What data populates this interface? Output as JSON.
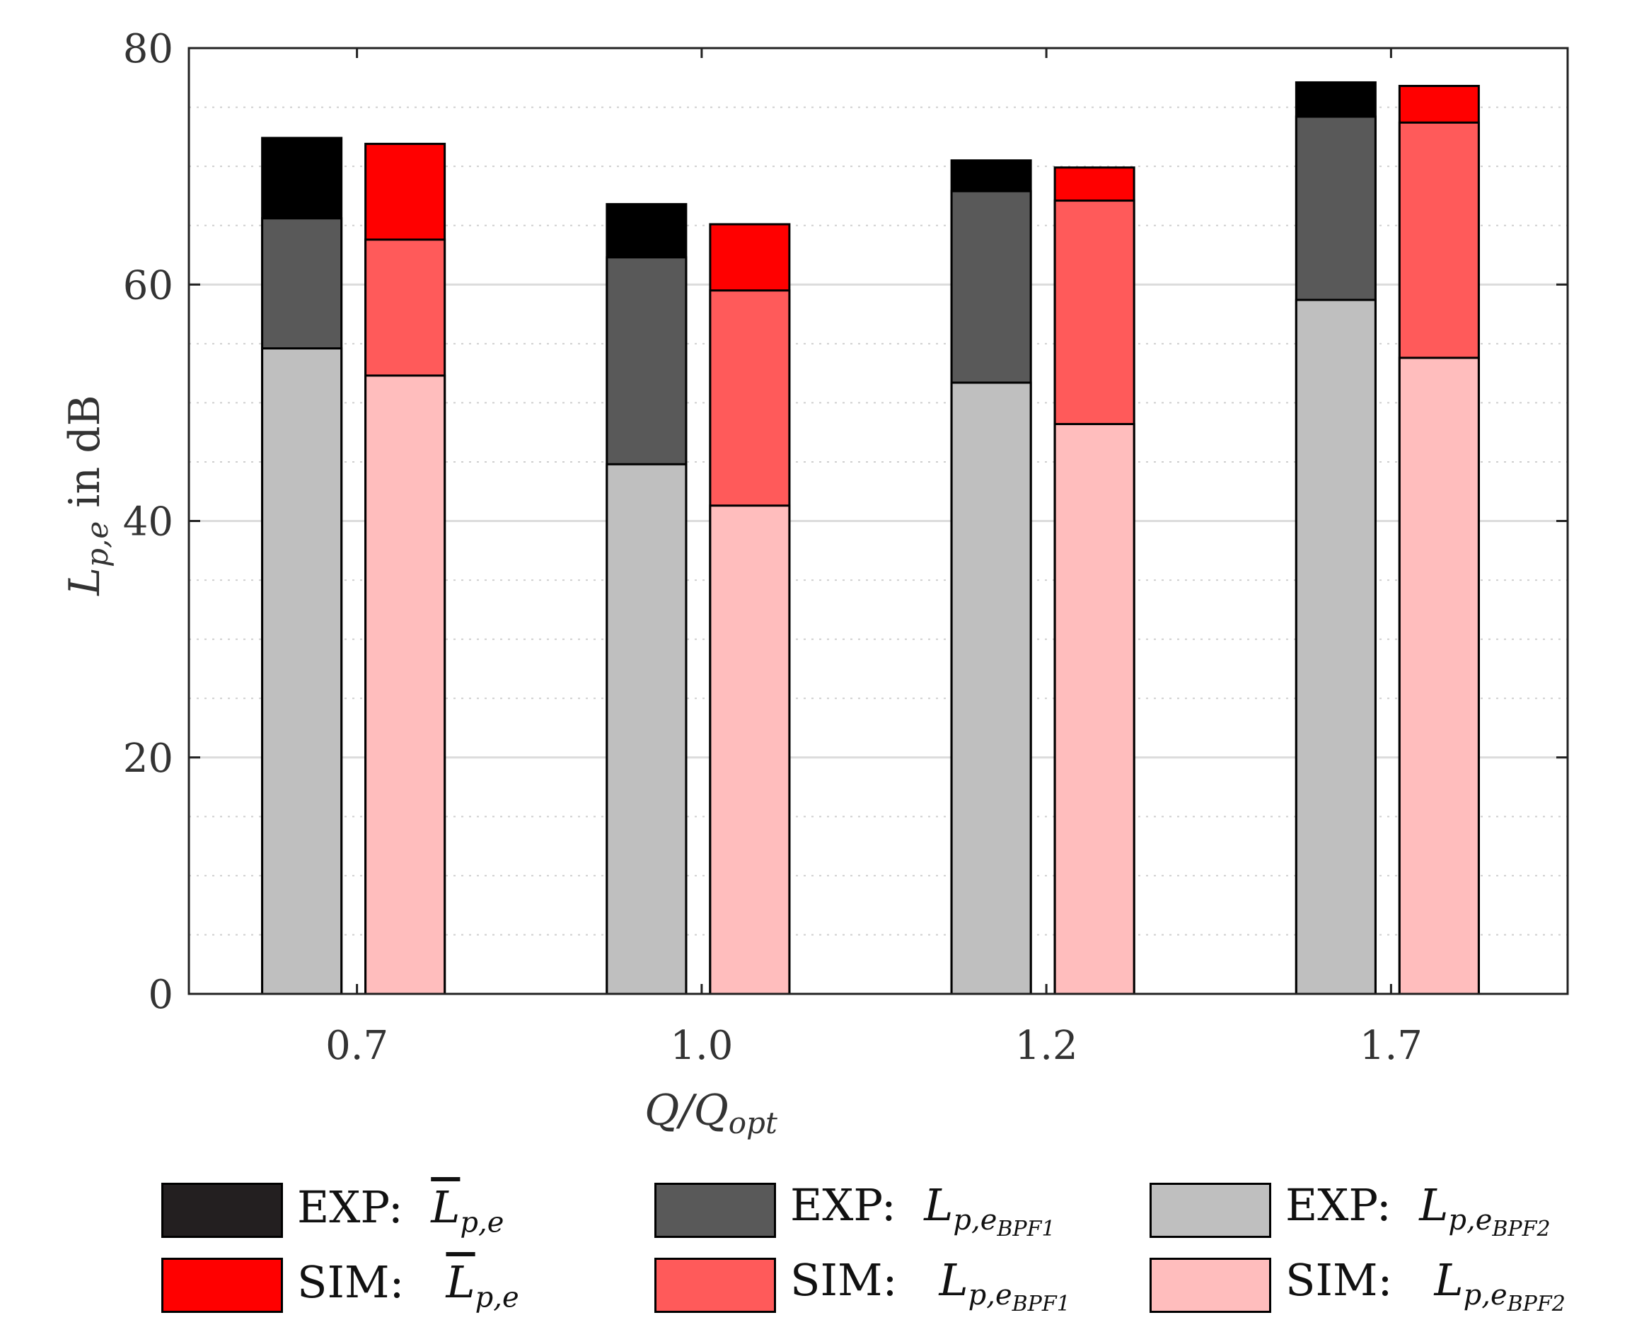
{
  "chart_data": {
    "type": "bar",
    "stacked": true,
    "grouped": true,
    "categories": [
      "0.7",
      "1.0",
      "1.2",
      "1.7"
    ],
    "xlabel": "Q/Q_opt",
    "ylabel": "L_{p,e} in dB",
    "ylim": [
      0,
      80
    ],
    "yticks": [
      "0",
      "20",
      "40",
      "60",
      "80"
    ],
    "grid": "major-solid minor-dotted",
    "groups": [
      {
        "name": "EXP",
        "segments": [
          {
            "name": "EXP: L_{p,e_BPF2}",
            "color": "#bfbfbf",
            "values": [
              54.6,
              44.8,
              51.7,
              58.7
            ]
          },
          {
            "name": "EXP: L_{p,e_BPF1}",
            "color": "#595959",
            "values": [
              65.6,
              62.3,
              67.9,
              74.2
            ]
          },
          {
            "name": "EXP: overline L_{p,e}",
            "color": "#000000",
            "values": [
              72.4,
              66.8,
              70.5,
              77.1
            ]
          }
        ]
      },
      {
        "name": "SIM",
        "segments": [
          {
            "name": "SIM: L_{p,e_BPF2}",
            "color": "#ffbdbd",
            "values": [
              52.3,
              41.3,
              48.2,
              53.8
            ]
          },
          {
            "name": "SIM: L_{p,e_BPF1}",
            "color": "#ff5a5a",
            "values": [
              63.8,
              59.5,
              67.1,
              73.7
            ]
          },
          {
            "name": "SIM: overline L_{p,e}",
            "color": "#ff0000",
            "values": [
              71.9,
              65.1,
              69.9,
              76.8
            ]
          }
        ]
      }
    ]
  },
  "axis": {
    "xlabel_main": "Q/Q",
    "xlabel_sub": "opt",
    "ylabel_main": "L",
    "ylabel_sub": "p,e",
    "ylabel_rest": " in dB"
  },
  "legend": {
    "exp_total": {
      "prefix": "EXP:",
      "main": "L",
      "sub": "p,e"
    },
    "sim_total": {
      "prefix": "SIM:",
      "main": "L",
      "sub": "p,e"
    },
    "exp_bpf1": {
      "prefix": "EXP:",
      "main": "L",
      "sub": "p,e",
      "subsub": "BPF",
      "subsubsub": "1"
    },
    "sim_bpf1": {
      "prefix": "SIM:",
      "main": "L",
      "sub": "p,e",
      "subsub": "BPF",
      "subsubsub": "1"
    },
    "exp_bpf2": {
      "prefix": "EXP:",
      "main": "L",
      "sub": "p,e",
      "subsub": "BPF",
      "subsubsub": "2"
    },
    "sim_bpf2": {
      "prefix": "SIM:",
      "main": "L",
      "sub": "p,e",
      "subsub": "BPF",
      "subsubsub": "2"
    }
  },
  "colors": {
    "exp_total": "#000000",
    "exp_bpf1": "#595959",
    "exp_bpf2": "#bfbfbf",
    "sim_total": "#ff0000",
    "sim_bpf1": "#ff5a5a",
    "sim_bpf2": "#ffbdbd"
  }
}
